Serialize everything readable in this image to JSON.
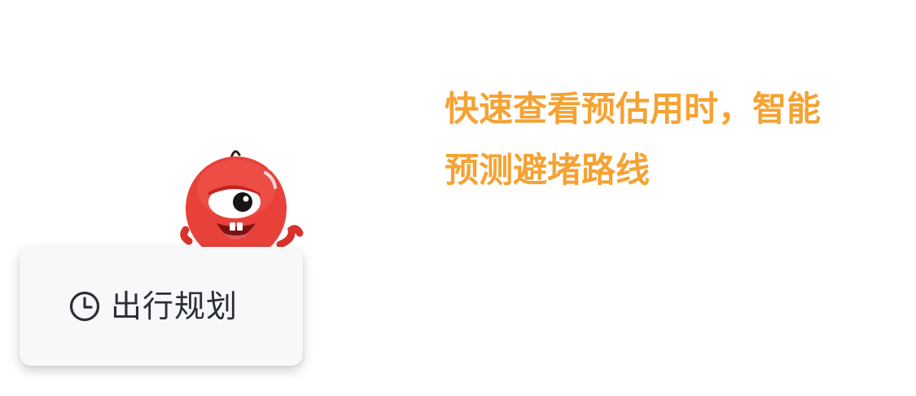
{
  "card": {
    "label": "出行规划",
    "icon": "clock-icon"
  },
  "mascot": {
    "icon": "red-blob-mascot",
    "color": "#e8413a"
  },
  "tip": {
    "line1": "快速查看预估用时，智能",
    "line2": "预测避堵路线"
  },
  "colors": {
    "tip": "#f5a233",
    "card_bg": "#f7f8fa",
    "text": "#2b2f36"
  }
}
